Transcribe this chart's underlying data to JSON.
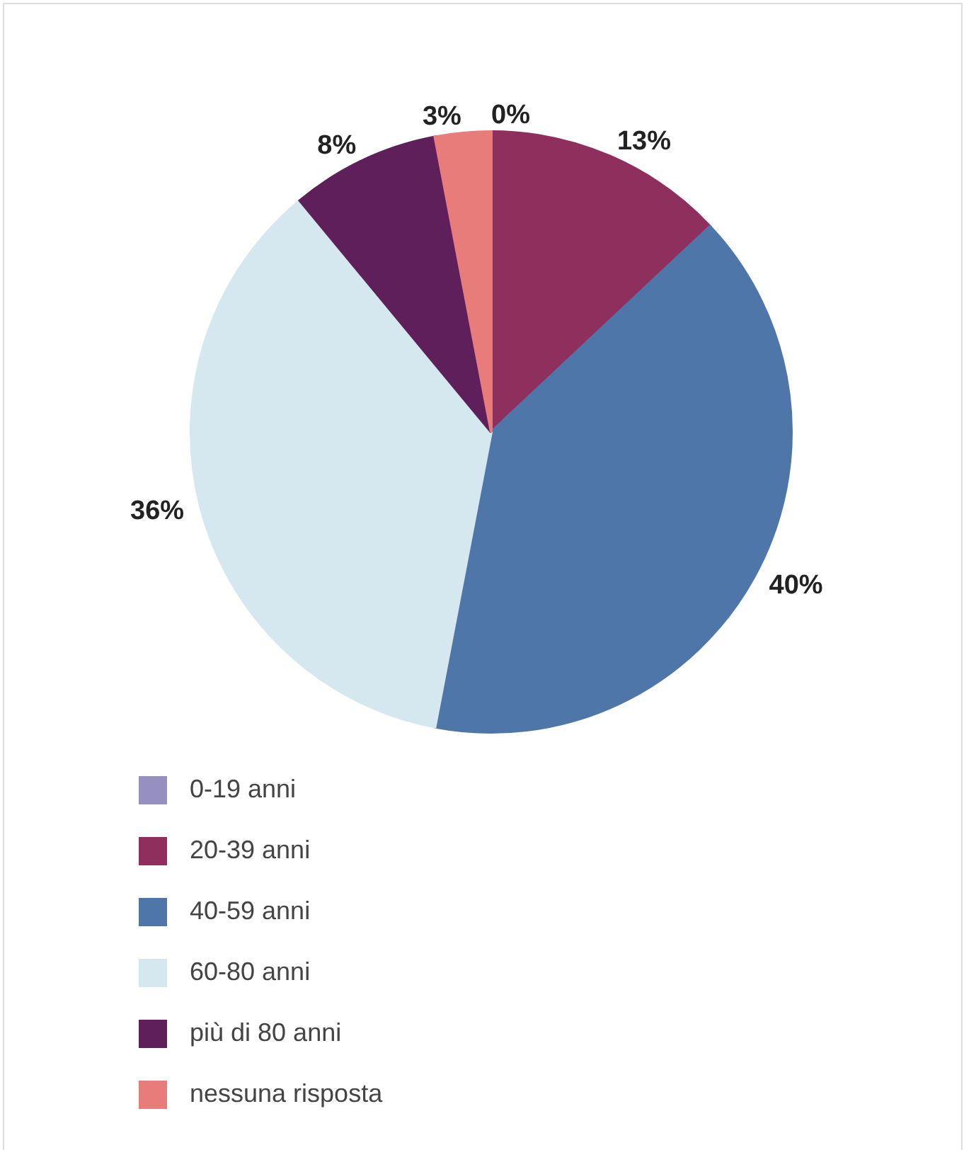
{
  "chart_data": {
    "type": "pie",
    "categories": [
      "0-19 anni",
      "20-39 anni",
      "40-59 anni",
      "60-80 anni",
      "più di 80 anni",
      "nessuna risposta"
    ],
    "values": [
      0,
      13,
      40,
      36,
      8,
      3
    ],
    "colors": [
      "#9590c0",
      "#8e2f5e",
      "#4f76a8",
      "#d5e8ef",
      "#5e1f5a",
      "#e87c7a"
    ],
    "value_labels": [
      "0%",
      "13%",
      "40%",
      "36%",
      "8%",
      "3%"
    ],
    "legend": "bottom left"
  }
}
